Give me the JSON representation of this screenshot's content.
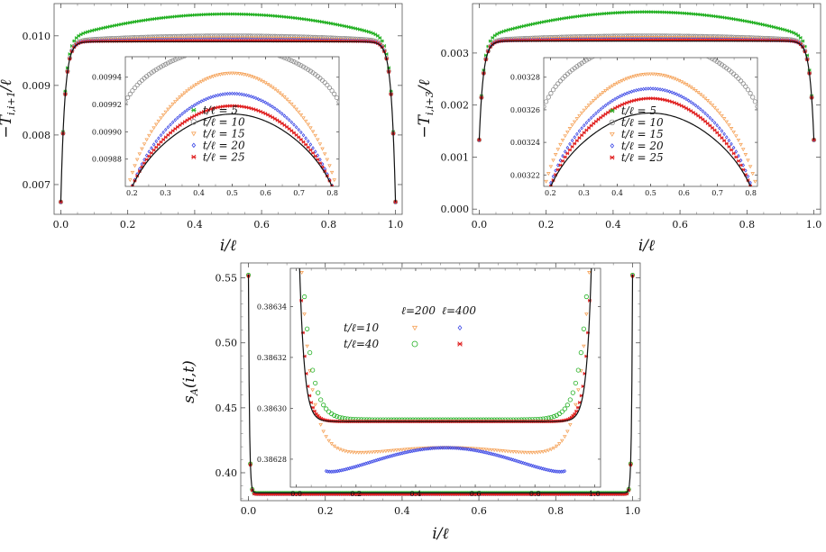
{
  "chart_data": [
    {
      "id": "top-left",
      "type": "scatter",
      "xlabel": "i/ℓ",
      "ylabel": "−T_{i,i+1}/ℓ",
      "xlim": [
        -0.02,
        1.02
      ],
      "ylim": [
        0.0064,
        0.01065
      ],
      "xticks": [
        "0.0",
        "0.2",
        "0.4",
        "0.6",
        "0.8",
        "1.0"
      ],
      "yticks": [
        "0.007",
        "0.008",
        "0.009",
        "0.010"
      ],
      "series": [
        {
          "name": "t/ℓ = 5",
          "color": "#22b022",
          "marker": "star",
          "plateau": 0.01044
        },
        {
          "name": "t/ℓ = 10",
          "color": "#8a8a8a",
          "marker": "circle",
          "plateau": 0.01
        },
        {
          "name": "t/ℓ = 15",
          "color": "#f5a35a",
          "marker": "triangle",
          "plateau": 0.00996
        },
        {
          "name": "t/ℓ = 20",
          "color": "#3c48e6",
          "marker": "diamond",
          "plateau": 0.00993
        },
        {
          "name": "t/ℓ = 25",
          "color": "#e02020",
          "marker": "star",
          "plateau": 0.0099
        }
      ],
      "exact": {
        "plateau": 0.00988,
        "edge": 0.00665
      },
      "inset": {
        "xlim": [
          0.18,
          0.82
        ],
        "ylim": [
          0.00986,
          0.009955
        ],
        "xticks": [
          "0.2",
          "0.3",
          "0.4",
          "0.5",
          "0.6",
          "0.7",
          "0.8"
        ],
        "yticks": [
          "0.00988",
          "0.00990",
          "0.00992",
          "0.00994"
        ],
        "curves": [
          {
            "name": "t/ℓ = 10",
            "center": 0.009962,
            "edge": 0.00993
          },
          {
            "name": "t/ℓ = 15",
            "center": 0.009943,
            "edge": 0.00987
          },
          {
            "name": "t/ℓ = 20",
            "center": 0.009928,
            "edge": 0.00986
          },
          {
            "name": "t/ℓ = 25",
            "center": 0.009919,
            "edge": 0.00986
          },
          {
            "name": "exact",
            "center": 0.009913,
            "edge": 0.00986
          }
        ]
      }
    },
    {
      "id": "top-right",
      "type": "scatter",
      "xlabel": "i/ℓ",
      "ylabel": "−T_{i,i+3}/ℓ",
      "xlim": [
        -0.02,
        1.02
      ],
      "ylim": [
        -0.0001,
        0.00395
      ],
      "xticks": [
        "0.0",
        "0.2",
        "0.4",
        "0.6",
        "0.8",
        "1.0"
      ],
      "yticks": [
        "0.000",
        "0.001",
        "0.002",
        "0.003"
      ],
      "series": [
        {
          "name": "t/ℓ = 5",
          "color": "#22b022",
          "marker": "star",
          "plateau": 0.00379
        },
        {
          "name": "t/ℓ = 10",
          "color": "#8a8a8a",
          "marker": "circle",
          "plateau": 0.00333
        },
        {
          "name": "t/ℓ = 15",
          "color": "#f5a35a",
          "marker": "triangle",
          "plateau": 0.003298
        },
        {
          "name": "t/ℓ = 20",
          "color": "#3c48e6",
          "marker": "diamond",
          "plateau": 0.00327
        },
        {
          "name": "t/ℓ = 25",
          "color": "#e02020",
          "marker": "star",
          "plateau": 0.00325
        }
      ],
      "exact": {
        "plateau": 0.00323,
        "edge": 0.00133
      },
      "inset": {
        "xlim": [
          0.18,
          0.82
        ],
        "ylim": [
          0.003213,
          0.003292
        ],
        "xticks": [
          "0.2",
          "0.3",
          "0.4",
          "0.5",
          "0.6",
          "0.7",
          "0.8"
        ],
        "yticks": [
          "0.00322",
          "0.00324",
          "0.00326",
          "0.00328"
        ],
        "curves": [
          {
            "name": "t/ℓ = 10",
            "center": 0.003302,
            "edge": 0.00327
          },
          {
            "name": "t/ℓ = 15",
            "center": 0.003282,
            "edge": 0.003225
          },
          {
            "name": "t/ℓ = 20",
            "center": 0.003273,
            "edge": 0.003215
          },
          {
            "name": "t/ℓ = 25",
            "center": 0.003267,
            "edge": 0.003213
          },
          {
            "name": "exact",
            "center": 0.003258,
            "edge": 0.003213
          }
        ]
      }
    },
    {
      "id": "bottom",
      "type": "scatter",
      "xlabel": "i/ℓ",
      "ylabel": "s_A(i,t)",
      "xlim": [
        -0.02,
        1.02
      ],
      "ylim": [
        0.3785,
        0.5615
      ],
      "xticks": [
        "0.0",
        "0.2",
        "0.4",
        "0.6",
        "0.8",
        "1.0"
      ],
      "yticks": [
        "0.40",
        "0.45",
        "0.50",
        "0.55"
      ],
      "series": [
        {
          "name": "ℓ=200, t/ℓ=10",
          "color": "#f5a35a",
          "marker": "triangle"
        },
        {
          "name": "ℓ=200, t/ℓ=40",
          "color": "#22b022",
          "marker": "circle"
        },
        {
          "name": "ℓ=400, t/ℓ=10",
          "color": "#3c48e6",
          "marker": "diamond"
        },
        {
          "name": "ℓ=400, t/ℓ=40",
          "color": "#e02020",
          "marker": "star"
        }
      ],
      "plateau": 0.3845,
      "edge": 0.5525,
      "inset": {
        "xlim": [
          -0.02,
          1.02
        ],
        "ylim": [
          0.386269,
          0.386355
        ],
        "xticks": [
          "0.0",
          "0.2",
          "0.4",
          "0.6",
          "0.8",
          "1.0"
        ],
        "yticks": [
          "0.38628",
          "0.38630",
          "0.38632",
          "0.38634"
        ],
        "legend": {
          "col1": "ℓ=200",
          "col2": "ℓ=400",
          "row1": "t/ℓ=10",
          "row2": "t/ℓ=40"
        },
        "curves": {
          "orange": {
            "plateau": 0.3862846,
            "dip": 0.386282
          },
          "blue": {
            "plateau": 0.3862845,
            "dip": 0.3862745
          },
          "green": {
            "plateau": 0.3862955
          },
          "red": {
            "plateau": 0.3862948
          }
        }
      }
    }
  ]
}
